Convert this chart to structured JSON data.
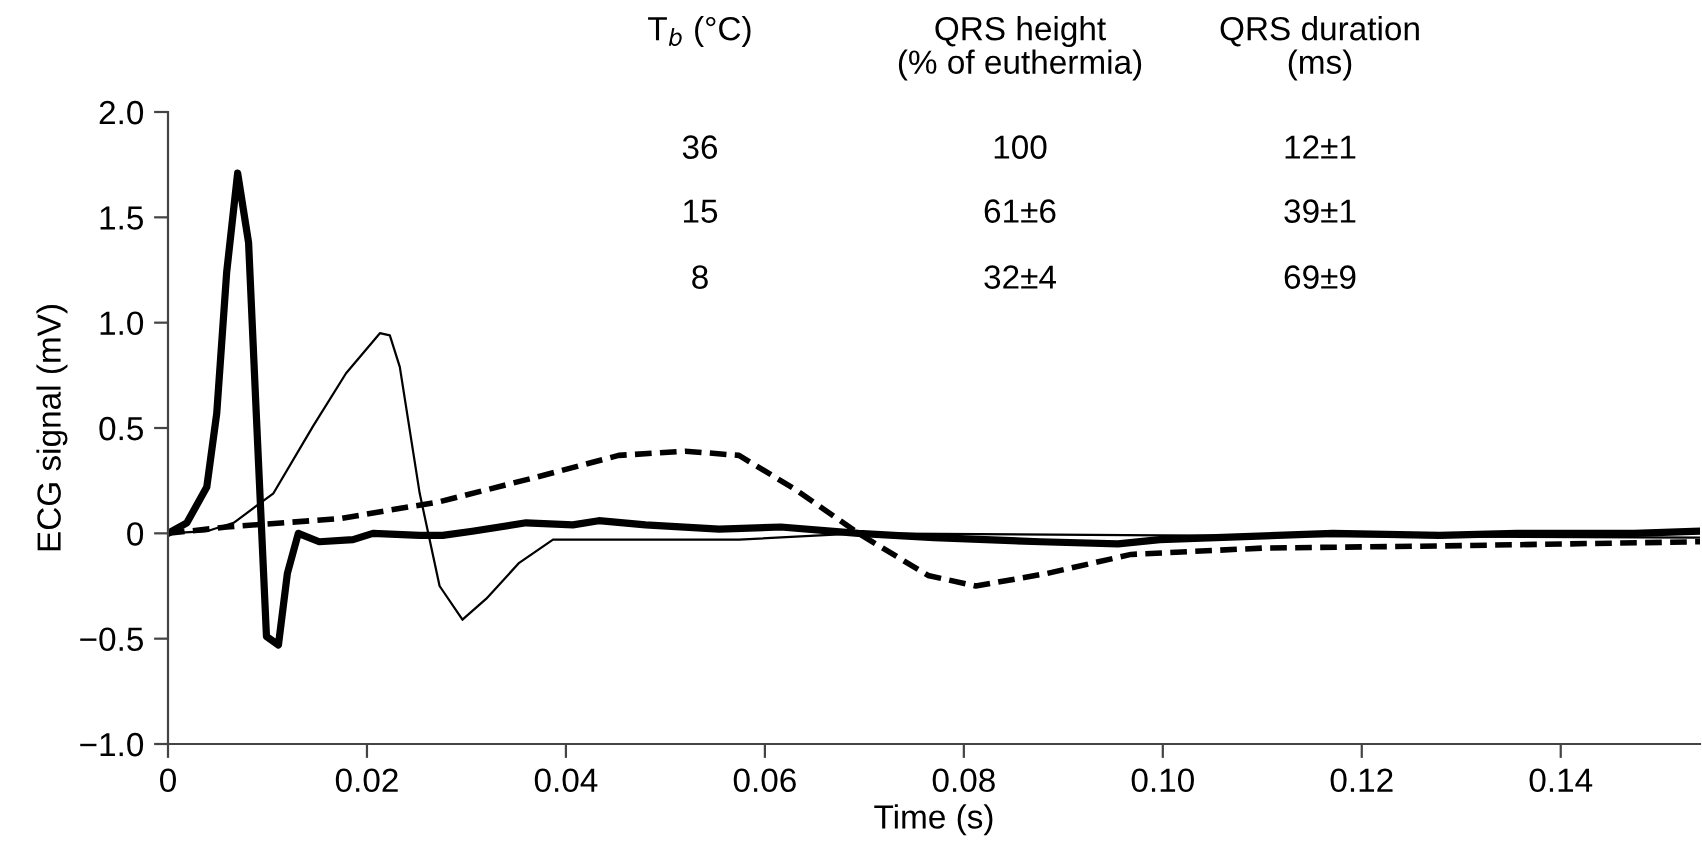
{
  "chart_data": {
    "type": "line",
    "xlabel": "Time (s)",
    "ylabel": "ECG signal (mV)",
    "xlim": [
      0,
      0.154
    ],
    "xticks": [
      0,
      0.02,
      0.04,
      0.06,
      0.08,
      {
        "value": 0.1,
        "label": "0.10"
      },
      0.12,
      0.14
    ],
    "ylim": [
      -1,
      2
    ],
    "yticks": [
      {
        "value": -1,
        "label": "−1.0"
      },
      {
        "value": -0.5,
        "label": "−0.5"
      },
      0,
      {
        "value": 0.5,
        "label": "0.5"
      },
      {
        "value": 1,
        "label": "1.0"
      },
      {
        "value": 1.5,
        "label": "1.5"
      },
      {
        "value": 2,
        "label": "2.0"
      }
    ],
    "grid": false,
    "marker": "none",
    "series": [
      {
        "color": "#000000",
        "line_style": "solid",
        "x": [
          0,
          0.0019,
          0.0039,
          0.0049,
          0.0059,
          0.007,
          0.0081,
          0.0089,
          0.0099,
          0.0111,
          0.012,
          0.0131,
          0.0152,
          0.0186,
          0.0206,
          0.0253,
          0.0276,
          0.0306,
          0.036,
          0.0407,
          0.0433,
          0.048,
          0.0554,
          0.0616,
          0.0694,
          0.077,
          0.0877,
          0.0955,
          0.0997,
          0.1115,
          0.1171,
          0.1278,
          0.1356,
          0.1474,
          0.154
        ],
        "values": [
          0,
          0.05,
          0.22,
          0.57,
          1.24,
          1.71,
          1.38,
          0.54,
          -0.49,
          -0.53,
          -0.19,
          0,
          -0.04,
          -0.03,
          0,
          -0.01,
          -0.01,
          0.01,
          0.05,
          0.04,
          0.06,
          0.04,
          0.02,
          0.03,
          0,
          -0.02,
          -0.04,
          -0.05,
          -0.03,
          -0.01,
          0,
          -0.01,
          0,
          0,
          0.01
        ]
      },
      {
        "color": "#000000",
        "line_style": "solid",
        "x": [
          0,
          0.0039,
          0.0066,
          0.0106,
          0.0146,
          0.0179,
          0.0213,
          0.0223,
          0.0233,
          0.0253,
          0.0273,
          0.0296,
          0.032,
          0.0353,
          0.0387,
          0.0574,
          0.0694,
          0.1,
          0.154
        ],
        "values": [
          0,
          0.01,
          0.05,
          0.19,
          0.51,
          0.76,
          0.95,
          0.94,
          0.79,
          0.19,
          -0.25,
          -0.41,
          -0.31,
          -0.14,
          -0.03,
          -0.03,
          0,
          -0.01,
          -0.02
        ]
      },
      {
        "color": "#000000",
        "line_style": "dashed",
        "x": [
          0,
          0.0059,
          0.0173,
          0.0273,
          0.0373,
          0.0453,
          0.052,
          0.0574,
          0.063,
          0.0694,
          0.0764,
          0.0812,
          0.0884,
          0.0968,
          0.1101,
          0.1278,
          0.154
        ],
        "values": [
          0,
          0.03,
          0.07,
          0.15,
          0.27,
          0.37,
          0.39,
          0.37,
          0.21,
          0,
          -0.2,
          -0.25,
          -0.19,
          -0.1,
          -0.07,
          -0.06,
          -0.04
        ]
      }
    ],
    "annotations": [
      "T$_{b}$ (°C)",
      "QRS height\n(% of euthermia)",
      "QRS duration\n(ms)",
      "36",
      "100",
      "12±1",
      "15",
      "61±6",
      "39±1",
      "8",
      "32±4",
      "69±9"
    ]
  }
}
